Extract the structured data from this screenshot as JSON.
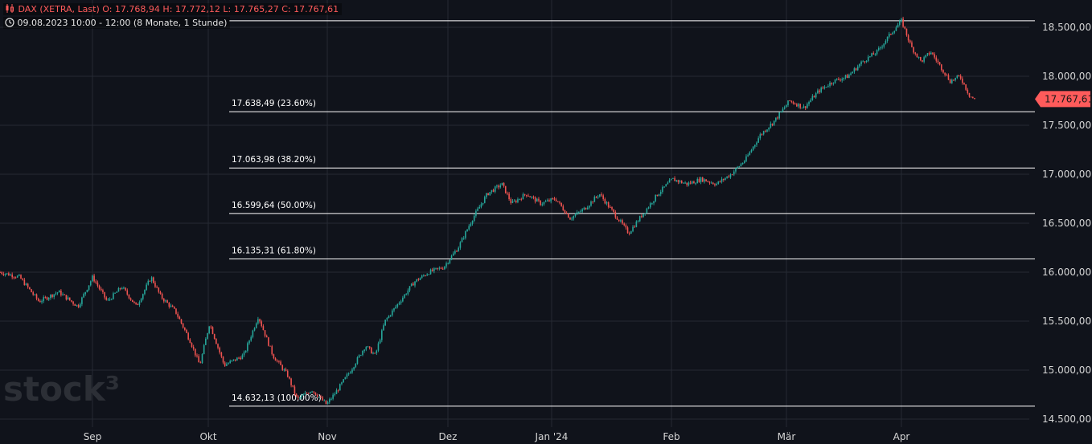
{
  "header": {
    "instrument": "DAX (XETRA, Last)",
    "open": "O: 17.768,94",
    "high": "H: 17.772,12",
    "low": "L: 17.765,27",
    "close": "C: 17.767,61",
    "timestamp": "09.08.2023 10:00 - 12:00",
    "range": "(8 Monate, 1 Stunde)",
    "instrument_icon": "candlestick-icon",
    "time_icon": "clock-icon"
  },
  "watermark": "stock³",
  "colors": {
    "background": "#10131b",
    "grid": "#262a33",
    "up": "#26a69a",
    "down": "#ef5350",
    "price_label": "#ff5b5b",
    "text": "#d6d6d6"
  },
  "chart_data": {
    "type": "candlestick",
    "xlabel": "",
    "ylabel": "",
    "ylim": [
      14450,
      18600
    ],
    "grid": true,
    "y_ticks": [
      "18.500,00",
      "18.000,00",
      "17.500,00",
      "17.000,00",
      "16.500,00",
      "16.000,00",
      "15.500,00",
      "15.000,00",
      "14.500,00"
    ],
    "y_tick_values": [
      18500,
      18000,
      17500,
      17000,
      16500,
      16000,
      15500,
      15000,
      14500
    ],
    "x_ticks": [
      "Sep",
      "Okt",
      "Nov",
      "Dez",
      "Jan '24",
      "Feb",
      "Mär",
      "Apr"
    ],
    "last_price": "17.767,61",
    "last_price_value": 17767.61,
    "fibonacci_levels": [
      {
        "label": "17.638,49 (23.60%)",
        "value": 17638.49
      },
      {
        "label": "17.063,98 (38.20%)",
        "value": 17063.98
      },
      {
        "label": "16.599,64 (50.00%)",
        "value": 16599.64
      },
      {
        "label": "16.135,31 (61.80%)",
        "value": 16135.31
      },
      {
        "label": "14.632,13 (100,00%)",
        "value": 14632.13
      }
    ],
    "fibonacci_top": 18567.0,
    "price_path": [
      [
        0,
        16000
      ],
      [
        0.02,
        15950
      ],
      [
        0.04,
        15700
      ],
      [
        0.06,
        15800
      ],
      [
        0.08,
        15650
      ],
      [
        0.095,
        15950
      ],
      [
        0.11,
        15700
      ],
      [
        0.125,
        15850
      ],
      [
        0.14,
        15650
      ],
      [
        0.155,
        15950
      ],
      [
        0.165,
        15750
      ],
      [
        0.18,
        15600
      ],
      [
        0.195,
        15300
      ],
      [
        0.205,
        15050
      ],
      [
        0.215,
        15480
      ],
      [
        0.23,
        15050
      ],
      [
        0.25,
        15150
      ],
      [
        0.265,
        15550
      ],
      [
        0.28,
        15150
      ],
      [
        0.295,
        14950
      ],
      [
        0.305,
        14700
      ],
      [
        0.32,
        14800
      ],
      [
        0.335,
        14650
      ],
      [
        0.345,
        14780
      ],
      [
        0.36,
        15000
      ],
      [
        0.375,
        15250
      ],
      [
        0.385,
        15150
      ],
      [
        0.395,
        15500
      ],
      [
        0.41,
        15700
      ],
      [
        0.425,
        15900
      ],
      [
        0.44,
        16000
      ],
      [
        0.455,
        16050
      ],
      [
        0.47,
        16250
      ],
      [
        0.485,
        16550
      ],
      [
        0.5,
        16800
      ],
      [
        0.515,
        16900
      ],
      [
        0.525,
        16700
      ],
      [
        0.54,
        16800
      ],
      [
        0.555,
        16700
      ],
      [
        0.57,
        16750
      ],
      [
        0.585,
        16550
      ],
      [
        0.6,
        16650
      ],
      [
        0.615,
        16800
      ],
      [
        0.63,
        16600
      ],
      [
        0.645,
        16400
      ],
      [
        0.66,
        16600
      ],
      [
        0.675,
        16800
      ],
      [
        0.69,
        16950
      ],
      [
        0.705,
        16900
      ],
      [
        0.72,
        16950
      ],
      [
        0.735,
        16900
      ],
      [
        0.75,
        17000
      ],
      [
        0.765,
        17150
      ],
      [
        0.78,
        17400
      ],
      [
        0.795,
        17550
      ],
      [
        0.81,
        17750
      ],
      [
        0.825,
        17680
      ],
      [
        0.84,
        17850
      ],
      [
        0.855,
        17950
      ],
      [
        0.87,
        18000
      ],
      [
        0.885,
        18150
      ],
      [
        0.9,
        18250
      ],
      [
        0.915,
        18450
      ],
      [
        0.925,
        18567
      ],
      [
        0.935,
        18300
      ],
      [
        0.945,
        18150
      ],
      [
        0.955,
        18250
      ],
      [
        0.965,
        18100
      ],
      [
        0.975,
        17950
      ],
      [
        0.985,
        18000
      ],
      [
        0.995,
        17800
      ],
      [
        1.0,
        17767
      ]
    ]
  }
}
